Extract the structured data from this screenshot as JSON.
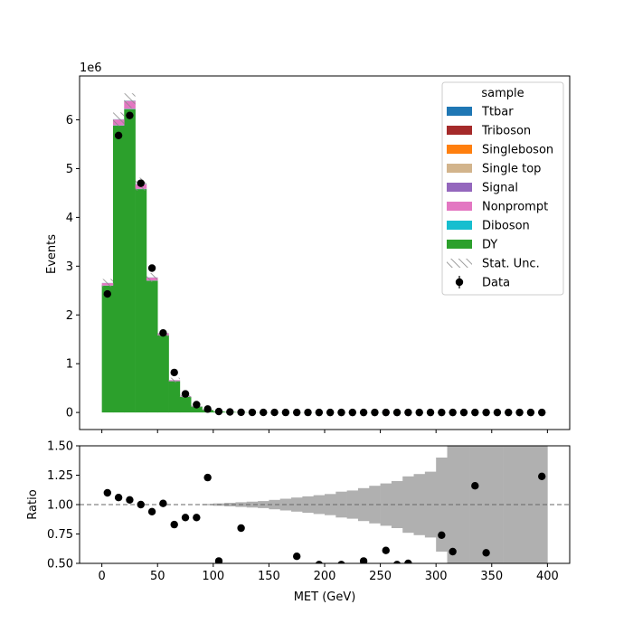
{
  "chart_data": [
    {
      "type": "bar",
      "stacked": true,
      "xlabel": "",
      "ylabel": "Events",
      "y_offset_label": "1e6",
      "xlim": [
        -20,
        420
      ],
      "ylim": [
        -0.35,
        6.9
      ],
      "y_scale_factor": 1000000,
      "xticks": [
        0,
        50,
        100,
        150,
        200,
        250,
        300,
        350,
        400
      ],
      "yticks": [
        0,
        1,
        2,
        3,
        4,
        5,
        6
      ],
      "bin_edges": [
        0,
        10,
        20,
        30,
        40,
        50,
        60,
        70,
        80,
        90,
        100,
        110,
        120,
        130,
        140,
        150,
        160,
        170,
        180,
        190,
        200,
        210,
        220,
        230,
        240,
        250,
        260,
        270,
        280,
        290,
        300,
        310,
        320,
        330,
        340,
        350,
        360,
        370,
        380,
        390,
        400
      ],
      "series": [
        {
          "name": "DY",
          "color": "#2ca02c",
          "values": [
            2.6,
            5.88,
            6.22,
            4.58,
            2.7,
            1.58,
            0.64,
            0.32,
            0.12,
            0.05,
            0.02,
            0.01,
            0.005,
            0.003,
            0.002,
            0.001,
            0.001,
            0.001,
            0.001,
            0.001,
            0.001,
            0.001,
            0.001,
            0.001,
            0.001,
            0.001,
            0.001,
            0.001,
            0.001,
            0.001,
            0.001,
            0.001,
            0.001,
            0.001,
            0.001,
            0.001,
            0.001,
            0.001,
            0.001,
            0.001
          ]
        },
        {
          "name": "Diboson",
          "color": "#17becf",
          "values": [
            0.003,
            0.006,
            0.007,
            0.006,
            0.004,
            0.003,
            0.002,
            0.001,
            0.001,
            0.0005,
            0,
            0,
            0,
            0,
            0,
            0,
            0,
            0,
            0,
            0,
            0,
            0,
            0,
            0,
            0,
            0,
            0,
            0,
            0,
            0,
            0,
            0,
            0,
            0,
            0,
            0,
            0,
            0,
            0,
            0
          ]
        },
        {
          "name": "Nonprompt",
          "color": "#e377c2",
          "values": [
            0.05,
            0.12,
            0.16,
            0.09,
            0.06,
            0.04,
            0.02,
            0.01,
            0.005,
            0.002,
            0,
            0,
            0,
            0,
            0,
            0,
            0,
            0,
            0,
            0,
            0,
            0,
            0,
            0,
            0,
            0,
            0,
            0,
            0,
            0,
            0,
            0,
            0,
            0,
            0,
            0,
            0,
            0,
            0,
            0
          ]
        },
        {
          "name": "Signal",
          "color": "#9467bd",
          "values": [
            0,
            0,
            0,
            0,
            0,
            0,
            0,
            0,
            0,
            0,
            0,
            0,
            0,
            0,
            0,
            0,
            0,
            0,
            0,
            0,
            0,
            0,
            0,
            0,
            0,
            0,
            0,
            0,
            0,
            0,
            0,
            0,
            0,
            0,
            0,
            0,
            0,
            0,
            0,
            0
          ]
        },
        {
          "name": "Single top",
          "color": "#d2b48c",
          "values": [
            0.001,
            0.002,
            0.002,
            0.002,
            0.001,
            0.001,
            0,
            0,
            0,
            0,
            0,
            0,
            0,
            0,
            0,
            0,
            0,
            0,
            0,
            0,
            0,
            0,
            0,
            0,
            0,
            0,
            0,
            0,
            0,
            0,
            0,
            0,
            0,
            0,
            0,
            0,
            0,
            0,
            0,
            0
          ]
        },
        {
          "name": "Singleboson",
          "color": "#ff7f0e",
          "values": [
            0,
            0,
            0,
            0,
            0,
            0,
            0,
            0,
            0,
            0,
            0,
            0,
            0,
            0,
            0,
            0,
            0,
            0,
            0,
            0,
            0,
            0,
            0,
            0,
            0,
            0,
            0,
            0,
            0,
            0,
            0,
            0,
            0,
            0,
            0,
            0,
            0,
            0,
            0,
            0
          ]
        },
        {
          "name": "Triboson",
          "color": "#a52a2a",
          "values": [
            0,
            0,
            0,
            0,
            0,
            0,
            0,
            0,
            0,
            0,
            0,
            0,
            0,
            0,
            0,
            0,
            0,
            0,
            0,
            0,
            0,
            0,
            0,
            0,
            0,
            0,
            0,
            0,
            0,
            0,
            0,
            0,
            0,
            0,
            0,
            0,
            0,
            0,
            0,
            0
          ]
        },
        {
          "name": "Ttbar",
          "color": "#1f77b4",
          "values": [
            0.002,
            0.004,
            0.005,
            0.004,
            0.003,
            0.002,
            0.001,
            0.001,
            0,
            0,
            0,
            0,
            0,
            0,
            0,
            0,
            0,
            0,
            0,
            0,
            0,
            0,
            0,
            0,
            0,
            0,
            0,
            0,
            0,
            0,
            0,
            0,
            0,
            0,
            0,
            0,
            0,
            0,
            0,
            0
          ]
        }
      ],
      "stat_unc": [
        0.08,
        0.14,
        0.15,
        0.13,
        0.09,
        0.07,
        0.05,
        0.03,
        0.02,
        0.01,
        0.005,
        0,
        0,
        0,
        0,
        0,
        0,
        0,
        0,
        0,
        0,
        0,
        0,
        0,
        0,
        0,
        0,
        0,
        0,
        0,
        0,
        0,
        0,
        0,
        0,
        0,
        0,
        0,
        0,
        0
      ],
      "data": {
        "name": "Data",
        "x": [
          5,
          15,
          25,
          35,
          45,
          55,
          65,
          75,
          85,
          95,
          105,
          115,
          125,
          135,
          145,
          155,
          165,
          175,
          185,
          195,
          205,
          215,
          225,
          235,
          245,
          255,
          265,
          275,
          285,
          295,
          305,
          315,
          325,
          335,
          345,
          355,
          365,
          375,
          385,
          395
        ],
        "y": [
          2.43,
          5.68,
          6.09,
          4.7,
          2.96,
          1.63,
          0.82,
          0.38,
          0.16,
          0.07,
          0.02,
          0.01,
          0.004,
          0.002,
          0.001,
          0.001,
          0.0005,
          0.0005,
          0.0003,
          0.0002,
          0.0002,
          0.0001,
          0.0001,
          0.0001,
          0.0001,
          0.0001,
          0.0001,
          0.0001,
          0.0001,
          0.0001,
          0.0001,
          0.0001,
          0.0001,
          0.0001,
          0.0001,
          0.0001,
          0.0001,
          0.0001,
          0.0001,
          0.0001
        ]
      },
      "legend": {
        "title": "sample",
        "placement": "upper right",
        "entries": [
          "Ttbar",
          "Triboson",
          "Singleboson",
          "Single top",
          "Signal",
          "Nonprompt",
          "Diboson",
          "DY",
          "Stat. Unc.",
          "Data"
        ]
      }
    },
    {
      "type": "scatter",
      "xlabel": "MET (GeV)",
      "ylabel": "Ratio",
      "xlim": [
        -20,
        420
      ],
      "ylim": [
        0.5,
        1.5
      ],
      "xticks": [
        0,
        50,
        100,
        150,
        200,
        250,
        300,
        350,
        400
      ],
      "xticklabels": [
        "0",
        "50",
        "100",
        "150",
        "200",
        "250",
        "300",
        "350",
        "400"
      ],
      "yticks": [
        0.5,
        0.75,
        1.0,
        1.25,
        1.5
      ],
      "yticklabels": [
        "0.50",
        "0.75",
        "1.00",
        "1.25",
        "1.50"
      ],
      "reference_line": 1.0,
      "unc_band": {
        "color": "#b0b0b0",
        "bin_edges": [
          90,
          100,
          110,
          120,
          130,
          140,
          150,
          160,
          170,
          180,
          190,
          200,
          210,
          220,
          230,
          240,
          250,
          260,
          270,
          280,
          290,
          300,
          310,
          320,
          330,
          340,
          350,
          360,
          370,
          380,
          390,
          400
        ],
        "half_width": [
          0.005,
          0.01,
          0.015,
          0.02,
          0.025,
          0.03,
          0.04,
          0.05,
          0.06,
          0.07,
          0.08,
          0.09,
          0.11,
          0.12,
          0.14,
          0.16,
          0.18,
          0.2,
          0.24,
          0.26,
          0.28,
          0.4,
          0.52,
          0.6,
          0.7,
          0.57,
          0.63,
          0.74,
          0.8,
          0.9,
          1.0
        ]
      },
      "x": [
        5,
        15,
        25,
        35,
        45,
        55,
        65,
        75,
        85,
        95,
        105,
        125,
        175,
        195,
        215,
        235,
        255,
        265,
        275,
        305,
        315,
        335,
        345,
        395
      ],
      "y": [
        1.1,
        1.06,
        1.04,
        1.0,
        0.94,
        1.01,
        0.83,
        0.89,
        0.89,
        1.23,
        0.52,
        0.8,
        0.56,
        0.49,
        0.49,
        0.52,
        0.61,
        0.49,
        0.5,
        0.74,
        0.6,
        1.16,
        0.59,
        1.24
      ]
    }
  ]
}
